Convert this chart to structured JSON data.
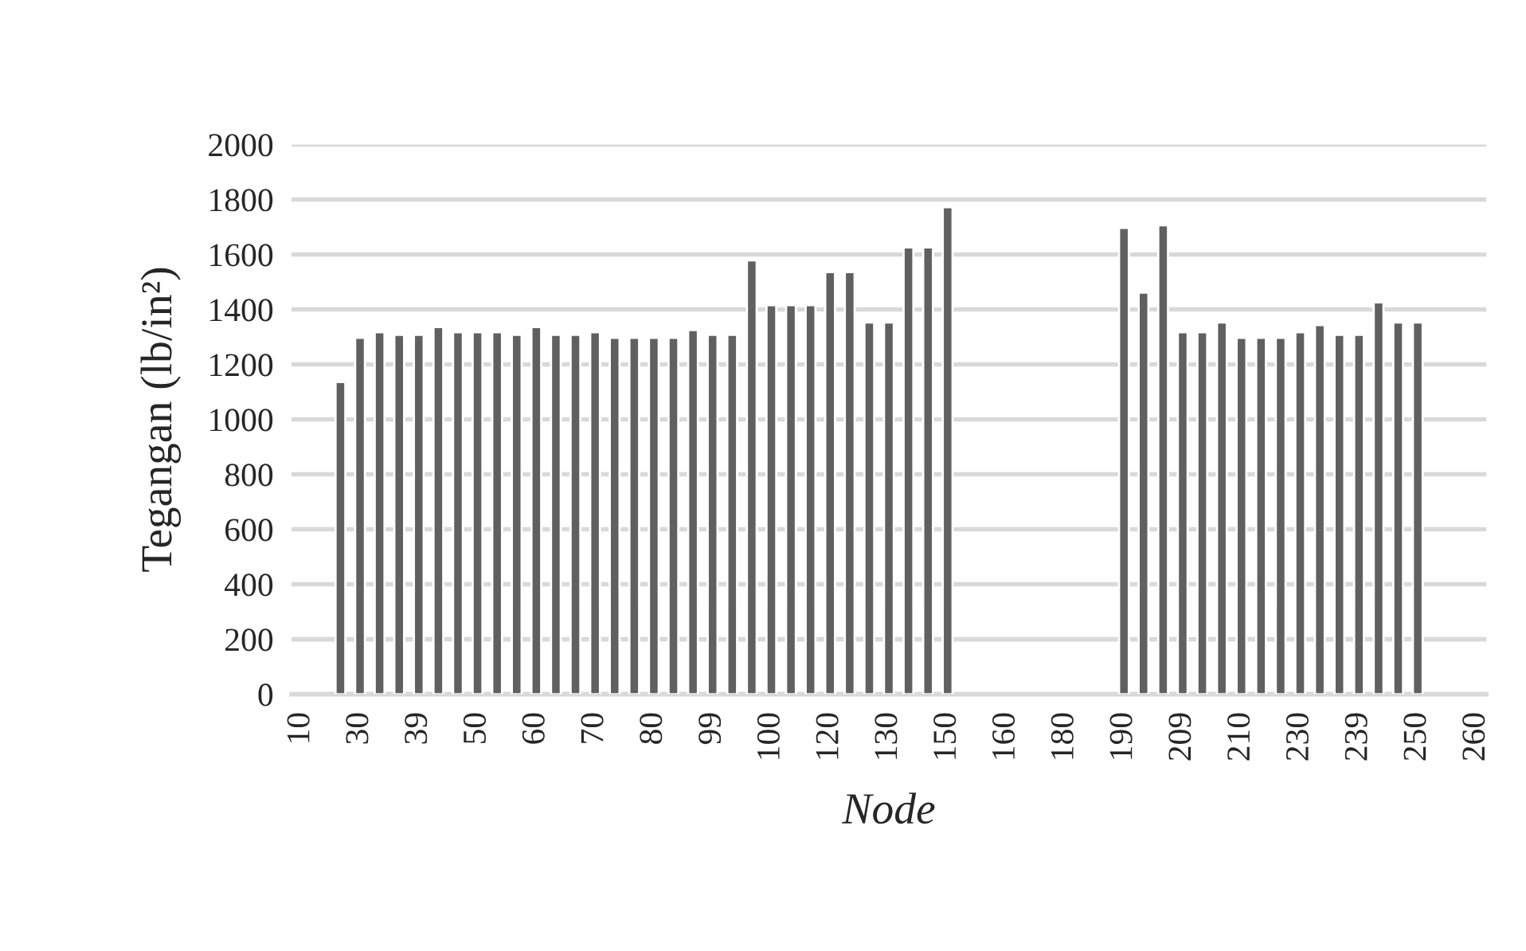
{
  "chart_data": {
    "type": "bar",
    "xlabel": "Node",
    "ylabel": "Tegangan (lb/in²)",
    "categories": [
      "10",
      null,
      null,
      "30",
      null,
      null,
      "39",
      null,
      null,
      "50",
      null,
      null,
      "60",
      null,
      null,
      "70",
      null,
      null,
      "80",
      null,
      null,
      "99",
      null,
      null,
      "100",
      null,
      null,
      "120",
      null,
      null,
      "130",
      null,
      null,
      "150",
      null,
      null,
      "160",
      null,
      null,
      "180",
      null,
      null,
      "190",
      null,
      null,
      "209",
      null,
      null,
      "210",
      null,
      null,
      "230",
      null,
      null,
      "239",
      null,
      null,
      "250",
      null,
      null,
      "260"
    ],
    "values": [
      null,
      null,
      1136,
      1297,
      1317,
      1308,
      1308,
      1336,
      1317,
      1317,
      1317,
      1308,
      1336,
      1308,
      1308,
      1317,
      1297,
      1297,
      1297,
      1297,
      1325,
      1308,
      1308,
      1579,
      1416,
      1416,
      1416,
      1536,
      1536,
      1353,
      1353,
      1626,
      1626,
      1772,
      null,
      null,
      null,
      null,
      null,
      null,
      null,
      null,
      1697,
      1461,
      1706,
      1317,
      1317,
      1353,
      1297,
      1297,
      1297,
      1317,
      1343,
      1308,
      1308,
      1426,
      1353,
      1353,
      null,
      null,
      null
    ],
    "color": "#606060",
    "ylim": [
      0,
      2000
    ],
    "yticks": [
      0,
      200,
      400,
      600,
      800,
      1000,
      1200,
      1400,
      1600,
      1800,
      2000
    ],
    "grid": "y",
    "legend": false
  }
}
